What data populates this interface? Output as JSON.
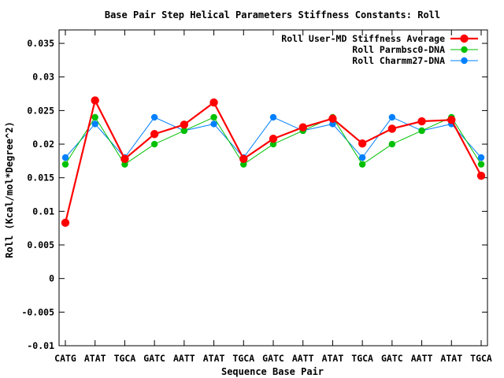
{
  "chart_data": {
    "type": "line",
    "title": "Base Pair Step Helical Parameters Stiffness Constants: Roll",
    "xlabel": "Sequence Base Pair",
    "ylabel": "Roll (Kcal/mol*Degree^2)",
    "categories": [
      "CATG",
      "ATAT",
      "TGCA",
      "GATC",
      "AATT",
      "ATAT",
      "TGCA",
      "GATC",
      "AATT",
      "ATAT",
      "TGCA",
      "GATC",
      "AATT",
      "ATAT",
      "TGCA"
    ],
    "ylim": [
      -0.01,
      0.037
    ],
    "yticks": [
      -0.01,
      -0.005,
      0,
      0.005,
      0.01,
      0.015,
      0.02,
      0.025,
      0.03,
      0.035
    ],
    "ytick_labels": [
      "-0.01",
      "-0.005",
      "0",
      "0.005",
      "0.01",
      "0.015",
      "0.02",
      "0.025",
      "0.03",
      "0.035"
    ],
    "grid": false,
    "legend_position": "top-right",
    "series": [
      {
        "name": "Roll User-MD Stiffness Average",
        "color": "#ff0000",
        "values": [
          0.0083,
          0.0265,
          0.0178,
          0.0215,
          0.0229,
          0.0262,
          0.0178,
          0.0208,
          0.0225,
          0.0238,
          0.0201,
          0.0223,
          0.0234,
          0.0236,
          0.0153
        ]
      },
      {
        "name": "Roll Parmbsc0-DNA",
        "color": "#00c000",
        "values": [
          0.017,
          0.024,
          0.017,
          0.02,
          0.022,
          0.024,
          0.017,
          0.02,
          0.022,
          0.024,
          0.017,
          0.02,
          0.022,
          0.024,
          0.017
        ]
      },
      {
        "name": "Roll Charmm27-DNA",
        "color": "#0080ff",
        "values": [
          0.018,
          0.023,
          0.018,
          0.024,
          0.022,
          0.023,
          0.018,
          0.024,
          0.022,
          0.023,
          0.018,
          0.024,
          0.022,
          0.023,
          0.018
        ]
      }
    ]
  }
}
